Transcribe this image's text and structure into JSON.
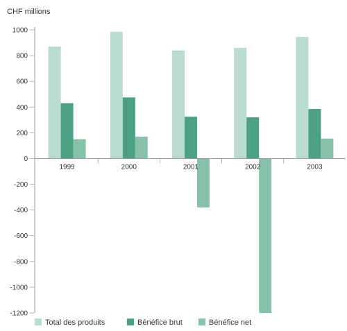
{
  "chart_data": {
    "type": "bar",
    "ylabel": "CHF millions",
    "ylim": [
      -1200,
      1000
    ],
    "yticks": [
      1000,
      800,
      600,
      400,
      200,
      0,
      -200,
      -400,
      -600,
      -800,
      -1000,
      -1200
    ],
    "grid": false,
    "legend_position": "bottom",
    "categories": [
      "1999",
      "2000",
      "2001",
      "2002",
      "2003"
    ],
    "series": [
      {
        "name": "Total des produits",
        "color": "#b9dccf",
        "values": [
          870,
          985,
          840,
          860,
          945
        ]
      },
      {
        "name": "Bénéfice brut",
        "color": "#4da183",
        "values": [
          430,
          475,
          325,
          320,
          385
        ]
      },
      {
        "name": "Bénéfice net",
        "color": "#88c1aa",
        "values": [
          150,
          170,
          -380,
          -1200,
          155
        ]
      }
    ]
  }
}
